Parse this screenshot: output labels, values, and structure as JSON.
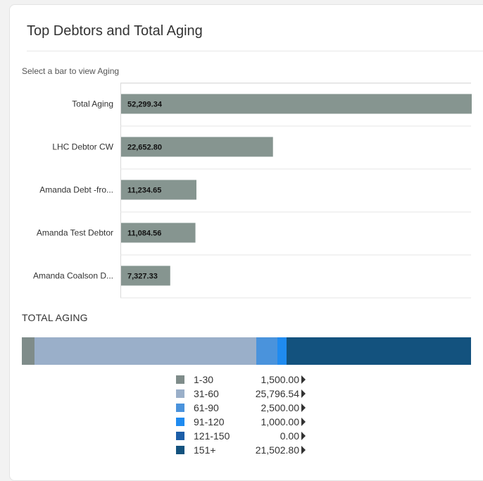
{
  "card": {
    "title": "Top Debtors and Total Aging",
    "hint": "Select a bar to view Aging"
  },
  "chart_data": [
    {
      "type": "bar",
      "orientation": "horizontal",
      "categories": [
        "Total Aging",
        "LHC Debtor CW",
        "Amanda Debt -fro...",
        "Amanda Test Debtor",
        "Amanda Coalson D..."
      ],
      "values": [
        52299.34,
        22652.8,
        11234.65,
        11084.56,
        7327.33
      ],
      "value_labels": [
        "52,299.34",
        "22,652.80",
        "11,234.65",
        "11,084.56",
        "7,327.33"
      ],
      "xlim": [
        0,
        52299.34
      ],
      "bar_color": "#869590",
      "grid": true
    },
    {
      "type": "bar",
      "orientation": "horizontal",
      "stacked": true,
      "title": "TOTAL AGING",
      "series": [
        {
          "name": "1-30",
          "value": 1500.0,
          "value_label": "1,500.00",
          "color": "#7f8c8a"
        },
        {
          "name": "31-60",
          "value": 25796.54,
          "value_label": "25,796.54",
          "color": "#9aafc9"
        },
        {
          "name": "61-90",
          "value": 2500.0,
          "value_label": "2,500.00",
          "color": "#4a93dc"
        },
        {
          "name": "91-120",
          "value": 1000.0,
          "value_label": "1,000.00",
          "color": "#1f8bf0"
        },
        {
          "name": "121-150",
          "value": 0.0,
          "value_label": "0.00",
          "color": "#1c5ea8"
        },
        {
          "name": "151+",
          "value": 21502.8,
          "value_label": "21,502.80",
          "color": "#13527e"
        }
      ]
    }
  ],
  "icons": {
    "legend_arrow": "caret-right-icon"
  }
}
